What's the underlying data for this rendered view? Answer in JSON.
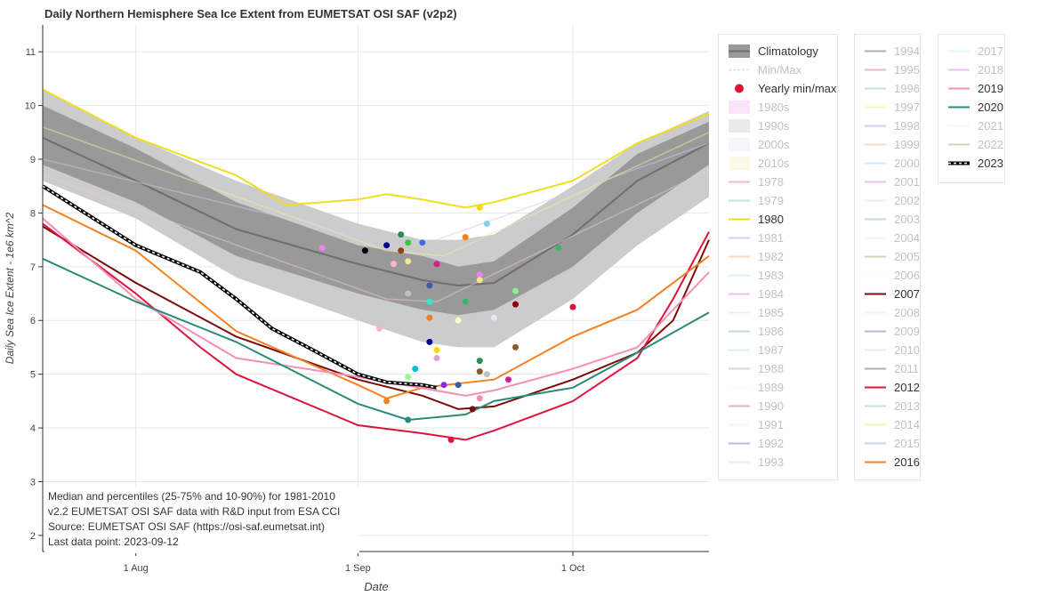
{
  "chart_data": {
    "type": "line",
    "title": "Daily Northern Hemisphere Sea Ice Extent from EUMETSAT OSI SAF (v2p2)",
    "xlabel": "Date",
    "ylabel": "Daily Sea Ice Extent - 1e6 km^2",
    "xlim": [
      "2023-07-19",
      "2023-10-20"
    ],
    "ylim": [
      1.7,
      11.5
    ],
    "x_ticks": [
      {
        "date": "2023-08-01",
        "label": "1 Aug"
      },
      {
        "date": "2023-09-01",
        "label": "1 Sep"
      },
      {
        "date": "2023-10-01",
        "label": "1 Oct"
      }
    ],
    "y_ticks": [
      2,
      3,
      4,
      5,
      6,
      7,
      8,
      9,
      10,
      11
    ],
    "grid": true,
    "legend_position": "right",
    "annotation": [
      "Median and percentiles (25-75% and 10-90%) for 1981-2010",
      "v2.2 EUMETSAT OSI SAF data with R&D input from ESA CCI",
      "Source: EUMETSAT OSI SAF (https://osi-saf.eumetsat.int)",
      "Last data point: 2023-09-12"
    ],
    "climatology": {
      "x": [
        "2023-07-19",
        "2023-08-01",
        "2023-08-15",
        "2023-09-01",
        "2023-09-10",
        "2023-09-15",
        "2023-09-20",
        "2023-10-01",
        "2023-10-10",
        "2023-10-20"
      ],
      "median": [
        9.4,
        8.6,
        7.7,
        7.05,
        6.75,
        6.65,
        6.7,
        7.6,
        8.6,
        9.3
      ],
      "p25": [
        8.9,
        8.2,
        7.2,
        6.5,
        6.2,
        6.1,
        6.2,
        7.0,
        8.0,
        8.9
      ],
      "p75": [
        10.0,
        9.2,
        8.2,
        7.4,
        7.2,
        7.0,
        7.1,
        8.1,
        9.1,
        9.7
      ],
      "p10": [
        8.6,
        7.9,
        6.8,
        6.0,
        5.6,
        5.5,
        5.5,
        6.4,
        7.4,
        8.3
      ],
      "p90": [
        10.3,
        9.4,
        8.6,
        7.8,
        7.5,
        7.5,
        7.6,
        8.5,
        9.3,
        9.9
      ]
    },
    "series": [
      {
        "name": "1980",
        "color": "#f0de1e",
        "x": [
          "2023-07-19",
          "2023-08-01",
          "2023-08-15",
          "2023-08-22",
          "2023-09-01",
          "2023-09-05",
          "2023-09-10",
          "2023-09-16",
          "2023-09-20",
          "2023-10-01",
          "2023-10-10",
          "2023-10-20"
        ],
        "values": [
          10.3,
          9.4,
          8.7,
          8.15,
          8.25,
          8.35,
          8.25,
          8.1,
          8.2,
          8.6,
          9.3,
          9.85
        ]
      },
      {
        "name": "2007",
        "color": "#7b0b0b",
        "x": [
          "2023-07-19",
          "2023-08-01",
          "2023-08-15",
          "2023-09-01",
          "2023-09-10",
          "2023-09-15",
          "2023-09-20",
          "2023-10-01",
          "2023-10-10",
          "2023-10-15",
          "2023-10-20"
        ],
        "values": [
          7.75,
          6.7,
          5.7,
          4.9,
          4.6,
          4.35,
          4.4,
          4.9,
          5.4,
          6.0,
          7.5
        ]
      },
      {
        "name": "2012",
        "color": "#dc143c",
        "x": [
          "2023-07-19",
          "2023-08-01",
          "2023-08-10",
          "2023-08-15",
          "2023-09-01",
          "2023-09-10",
          "2023-09-16",
          "2023-09-20",
          "2023-10-01",
          "2023-10-10",
          "2023-10-15",
          "2023-10-20"
        ],
        "values": [
          7.8,
          6.5,
          5.5,
          5.0,
          4.05,
          3.9,
          3.78,
          3.95,
          4.5,
          5.3,
          6.4,
          7.65
        ]
      },
      {
        "name": "2016",
        "color": "#f58020",
        "x": [
          "2023-07-19",
          "2023-08-01",
          "2023-08-15",
          "2023-09-01",
          "2023-09-05",
          "2023-09-10",
          "2023-09-20",
          "2023-10-01",
          "2023-10-10",
          "2023-10-20"
        ],
        "values": [
          8.15,
          7.3,
          5.8,
          4.8,
          4.55,
          4.75,
          4.9,
          5.7,
          6.2,
          7.2
        ]
      },
      {
        "name": "2019",
        "color": "#f58fb4",
        "x": [
          "2023-07-19",
          "2023-08-01",
          "2023-08-15",
          "2023-09-01",
          "2023-09-16",
          "2023-09-20",
          "2023-10-01",
          "2023-10-10",
          "2023-10-20"
        ],
        "values": [
          7.9,
          6.4,
          5.3,
          4.95,
          4.6,
          4.7,
          5.1,
          5.5,
          6.9
        ]
      },
      {
        "name": "2020",
        "color": "#2a8a7a",
        "x": [
          "2023-07-19",
          "2023-08-01",
          "2023-08-15",
          "2023-09-01",
          "2023-09-08",
          "2023-09-16",
          "2023-09-20",
          "2023-10-01",
          "2023-10-10",
          "2023-10-20"
        ],
        "values": [
          7.15,
          6.35,
          5.6,
          4.45,
          4.15,
          4.25,
          4.5,
          4.75,
          5.4,
          6.15
        ]
      },
      {
        "name": "2023",
        "color": "#000000",
        "dashed": true,
        "x": [
          "2023-07-19",
          "2023-08-01",
          "2023-08-10",
          "2023-08-15",
          "2023-08-20",
          "2023-08-25",
          "2023-09-01",
          "2023-09-05",
          "2023-09-10",
          "2023-09-12"
        ],
        "values": [
          8.5,
          7.4,
          6.9,
          6.4,
          5.85,
          5.5,
          5.0,
          4.85,
          4.8,
          4.75
        ]
      }
    ],
    "faded_series": [
      {
        "name": "1981",
        "color": "#c9c9ee",
        "x": [
          "2023-07-19",
          "2023-09-05",
          "2023-09-12",
          "2023-10-20"
        ],
        "values": [
          9.0,
          7.45,
          7.5,
          9.3
        ]
      },
      {
        "name": "1985",
        "color": "#f4c6d8",
        "x": [
          "2023-07-19",
          "2023-09-05",
          "2023-09-12",
          "2023-10-20"
        ],
        "values": [
          8.7,
          6.4,
          6.35,
          8.8
        ]
      },
      {
        "name": "1997",
        "color": "#f7eaa4",
        "x": [
          "2023-07-19",
          "2023-09-05",
          "2023-09-13",
          "2023-10-20"
        ],
        "values": [
          9.6,
          7.3,
          7.2,
          9.5
        ]
      }
    ],
    "yearly_minima": [
      {
        "date": "2023-08-27",
        "value": 7.35,
        "color": "#ee82ee"
      },
      {
        "date": "2023-09-02",
        "value": 7.3,
        "color": "#000000"
      },
      {
        "date": "2023-09-04",
        "value": 5.85,
        "color": "#f4b6c8"
      },
      {
        "date": "2023-09-05",
        "value": 4.5,
        "color": "#f58020"
      },
      {
        "date": "2023-09-05",
        "value": 7.4,
        "color": "#00008b"
      },
      {
        "date": "2023-09-06",
        "value": 7.05,
        "color": "#ffb6c1"
      },
      {
        "date": "2023-09-07",
        "value": 7.6,
        "color": "#2e8b57"
      },
      {
        "date": "2023-09-07",
        "value": 7.3,
        "color": "#8b4513"
      },
      {
        "date": "2023-09-08",
        "value": 7.45,
        "color": "#32cd32"
      },
      {
        "date": "2023-09-08",
        "value": 4.15,
        "color": "#2a8a7a"
      },
      {
        "date": "2023-09-08",
        "value": 7.1,
        "color": "#f0e68c"
      },
      {
        "date": "2023-09-08",
        "value": 6.5,
        "color": "#c0c0c0"
      },
      {
        "date": "2023-09-08",
        "value": 4.95,
        "color": "#98fb98"
      },
      {
        "date": "2023-09-09",
        "value": 5.1,
        "color": "#00bcd4"
      },
      {
        "date": "2023-09-10",
        "value": 7.45,
        "color": "#4169e1"
      },
      {
        "date": "2023-09-11",
        "value": 6.65,
        "color": "#3d5aa5"
      },
      {
        "date": "2023-09-11",
        "value": 6.35,
        "color": "#40e0d0"
      },
      {
        "date": "2023-09-11",
        "value": 6.05,
        "color": "#f58020"
      },
      {
        "date": "2023-09-11",
        "value": 5.6,
        "color": "#00008b"
      },
      {
        "date": "2023-09-12",
        "value": 7.05,
        "color": "#d02090"
      },
      {
        "date": "2023-09-12",
        "value": 5.45,
        "color": "#ffd700"
      },
      {
        "date": "2023-09-12",
        "value": 5.3,
        "color": "#dda0dd"
      },
      {
        "date": "2023-09-13",
        "value": 4.8,
        "color": "#8a2be2"
      },
      {
        "date": "2023-09-14",
        "value": 3.78,
        "color": "#dc143c"
      },
      {
        "date": "2023-09-15",
        "value": 4.8,
        "color": "#3d5aa5"
      },
      {
        "date": "2023-09-15",
        "value": 6.0,
        "color": "#fffacd"
      },
      {
        "date": "2023-09-16",
        "value": 7.55,
        "color": "#f58020"
      },
      {
        "date": "2023-09-16",
        "value": 6.35,
        "color": "#3cb371"
      },
      {
        "date": "2023-09-17",
        "value": 4.35,
        "color": "#7b0b0b"
      },
      {
        "date": "2023-09-18",
        "value": 8.1,
        "color": "#ffd700"
      },
      {
        "date": "2023-09-18",
        "value": 6.85,
        "color": "#ee82ee"
      },
      {
        "date": "2023-09-18",
        "value": 6.75,
        "color": "#f0e68c"
      },
      {
        "date": "2023-09-18",
        "value": 5.25,
        "color": "#2e8b57"
      },
      {
        "date": "2023-09-18",
        "value": 5.05,
        "color": "#8b5a2b"
      },
      {
        "date": "2023-09-18",
        "value": 4.55,
        "color": "#f58fb4"
      },
      {
        "date": "2023-09-19",
        "value": 7.8,
        "color": "#87ceeb"
      },
      {
        "date": "2023-09-19",
        "value": 5.0,
        "color": "#c0c0c0"
      },
      {
        "date": "2023-09-20",
        "value": 6.05,
        "color": "#e6e6fa"
      },
      {
        "date": "2023-09-22",
        "value": 4.9,
        "color": "#d02090"
      },
      {
        "date": "2023-09-23",
        "value": 6.55,
        "color": "#90ee90"
      },
      {
        "date": "2023-09-23",
        "value": 6.3,
        "color": "#8b0000"
      },
      {
        "date": "2023-09-23",
        "value": 5.5,
        "color": "#8b5a2b"
      },
      {
        "date": "2023-09-29",
        "value": 7.35,
        "color": "#3cb371"
      },
      {
        "date": "2023-10-01",
        "value": 6.25,
        "color": "#dc143c"
      }
    ]
  },
  "legend_col1": [
    {
      "label": "Climatology",
      "type": "clim",
      "faded": false
    },
    {
      "label": "Min/Max",
      "type": "dash",
      "color": "#999999",
      "faded": true
    },
    {
      "label": "Yearly min/max",
      "type": "dot",
      "color": "#dc143c",
      "faded": false
    },
    {
      "label": "1980s",
      "type": "band",
      "color": "#f4a6f4",
      "faded": true
    },
    {
      "label": "1990s",
      "type": "band",
      "color": "#bdbdbd",
      "faded": true
    },
    {
      "label": "2000s",
      "type": "band",
      "color": "#e6e0f8",
      "faded": true
    },
    {
      "label": "2010s",
      "type": "band",
      "color": "#f7ecb0",
      "faded": true
    },
    {
      "label": "1978",
      "type": "line",
      "color": "#dc143c",
      "faded": true
    },
    {
      "label": "1979",
      "type": "line",
      "color": "#3cb371",
      "faded": true
    },
    {
      "label": "1980",
      "type": "line",
      "color": "#f0de1e",
      "faded": false
    },
    {
      "label": "1981",
      "type": "line",
      "color": "#6a6ad8",
      "faded": true
    },
    {
      "label": "1982",
      "type": "line",
      "color": "#f58020",
      "faded": true
    },
    {
      "label": "1983",
      "type": "line",
      "color": "#87ceeb",
      "faded": true
    },
    {
      "label": "1984",
      "type": "line",
      "color": "#da22da",
      "faded": true
    },
    {
      "label": "1985",
      "type": "line",
      "color": "#f4b6c8",
      "faded": true
    },
    {
      "label": "1986",
      "type": "line",
      "color": "#2a8a7a",
      "faded": true
    },
    {
      "label": "1987",
      "type": "line",
      "color": "#87ceeb",
      "faded": true
    },
    {
      "label": "1988",
      "type": "line",
      "color": "#a0784a",
      "faded": true
    },
    {
      "label": "1989",
      "type": "line",
      "color": "#fffacd",
      "faded": true
    },
    {
      "label": "1990",
      "type": "line",
      "color": "#8b1a1a",
      "faded": true
    },
    {
      "label": "1991",
      "type": "line",
      "color": "#b8f0e0",
      "faded": true
    },
    {
      "label": "1992",
      "type": "line",
      "color": "#1a1a8b",
      "faded": true
    },
    {
      "label": "1993",
      "type": "line",
      "color": "#bdbdbd",
      "faded": true
    }
  ],
  "legend_col2": [
    {
      "label": "1994",
      "type": "line",
      "color": "#000000",
      "faded": true
    },
    {
      "label": "1995",
      "type": "line",
      "color": "#dc143c",
      "faded": true
    },
    {
      "label": "1996",
      "type": "line",
      "color": "#3cb371",
      "faded": true
    },
    {
      "label": "1997",
      "type": "line",
      "color": "#f0de1e",
      "faded": true
    },
    {
      "label": "1998",
      "type": "line",
      "color": "#4169e1",
      "faded": true
    },
    {
      "label": "1999",
      "type": "line",
      "color": "#f58020",
      "faded": true
    },
    {
      "label": "2000",
      "type": "line",
      "color": "#40c4f0",
      "faded": true
    },
    {
      "label": "2001",
      "type": "line",
      "color": "#da22da",
      "faded": true
    },
    {
      "label": "2002",
      "type": "line",
      "color": "#f4b6c8",
      "faded": true
    },
    {
      "label": "2003",
      "type": "line",
      "color": "#2a8a7a",
      "faded": true
    },
    {
      "label": "2004",
      "type": "line",
      "color": "#d8d8d8",
      "faded": true
    },
    {
      "label": "2005",
      "type": "line",
      "color": "#8b5a2b",
      "faded": true
    },
    {
      "label": "2006",
      "type": "line",
      "color": "#fffacd",
      "faded": true
    },
    {
      "label": "2007",
      "type": "line",
      "color": "#7b0b0b",
      "faded": false
    },
    {
      "label": "2008",
      "type": "line",
      "color": "#98fb98",
      "faded": true
    },
    {
      "label": "2009",
      "type": "line",
      "color": "#1a1a8b",
      "faded": true
    },
    {
      "label": "2010",
      "type": "line",
      "color": "#bdbdbd",
      "faded": true
    },
    {
      "label": "2011",
      "type": "line",
      "color": "#000000",
      "faded": true
    },
    {
      "label": "2012",
      "type": "line",
      "color": "#dc143c",
      "faded": false
    },
    {
      "label": "2013",
      "type": "line",
      "color": "#3cb371",
      "faded": true
    },
    {
      "label": "2014",
      "type": "line",
      "color": "#f0de1e",
      "faded": true
    },
    {
      "label": "2015",
      "type": "line",
      "color": "#4169e1",
      "faded": true
    },
    {
      "label": "2016",
      "type": "line",
      "color": "#f58020",
      "faded": false
    }
  ],
  "legend_col3": [
    {
      "label": "2017",
      "type": "line",
      "color": "#87e6f0",
      "faded": true
    },
    {
      "label": "2018",
      "type": "line",
      "color": "#da22da",
      "faded": true
    },
    {
      "label": "2019",
      "type": "line",
      "color": "#f58fb4",
      "faded": false
    },
    {
      "label": "2020",
      "type": "line",
      "color": "#2a8a7a",
      "faded": false
    },
    {
      "label": "2021",
      "type": "line",
      "color": "#e6e6fa",
      "faded": true
    },
    {
      "label": "2022",
      "type": "line",
      "color": "#8b5a2b",
      "faded": true
    },
    {
      "label": "2023",
      "type": "dash2023",
      "color": "#000000",
      "faded": false
    }
  ]
}
